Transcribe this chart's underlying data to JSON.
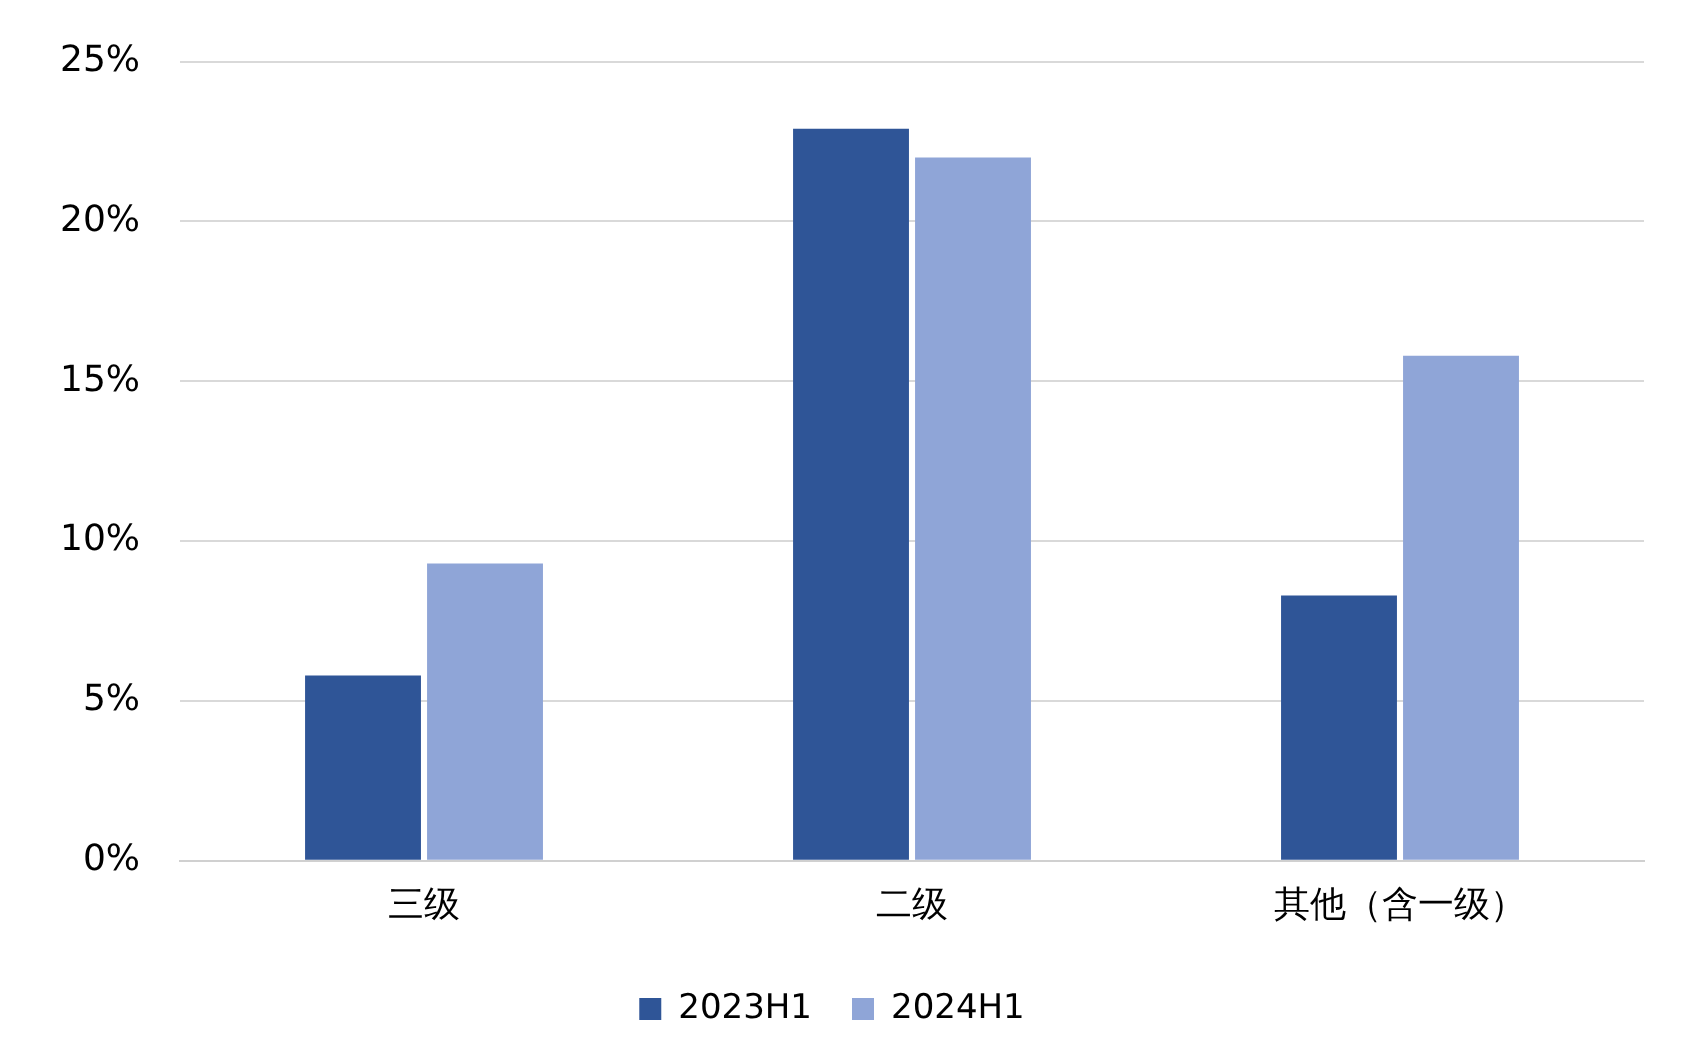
{
  "chart_data": {
    "type": "bar",
    "categories": [
      "三级",
      "二级",
      "其他（含一级）"
    ],
    "series": [
      {
        "name": "2023H1",
        "color": "#2f5597",
        "values": [
          5.8,
          22.9,
          8.3
        ]
      },
      {
        "name": "2024H1",
        "color": "#8fa5d7",
        "values": [
          9.3,
          22.0,
          15.8
        ]
      }
    ],
    "ylim": [
      0,
      25
    ],
    "yticks": [
      {
        "value": 0,
        "label": "0%"
      },
      {
        "value": 5,
        "label": "5%"
      },
      {
        "value": 10,
        "label": "10%"
      },
      {
        "value": 15,
        "label": "15%"
      },
      {
        "value": 20,
        "label": "20%"
      },
      {
        "value": 25,
        "label": "25%"
      }
    ],
    "grid": "y",
    "legend": "bottom"
  }
}
